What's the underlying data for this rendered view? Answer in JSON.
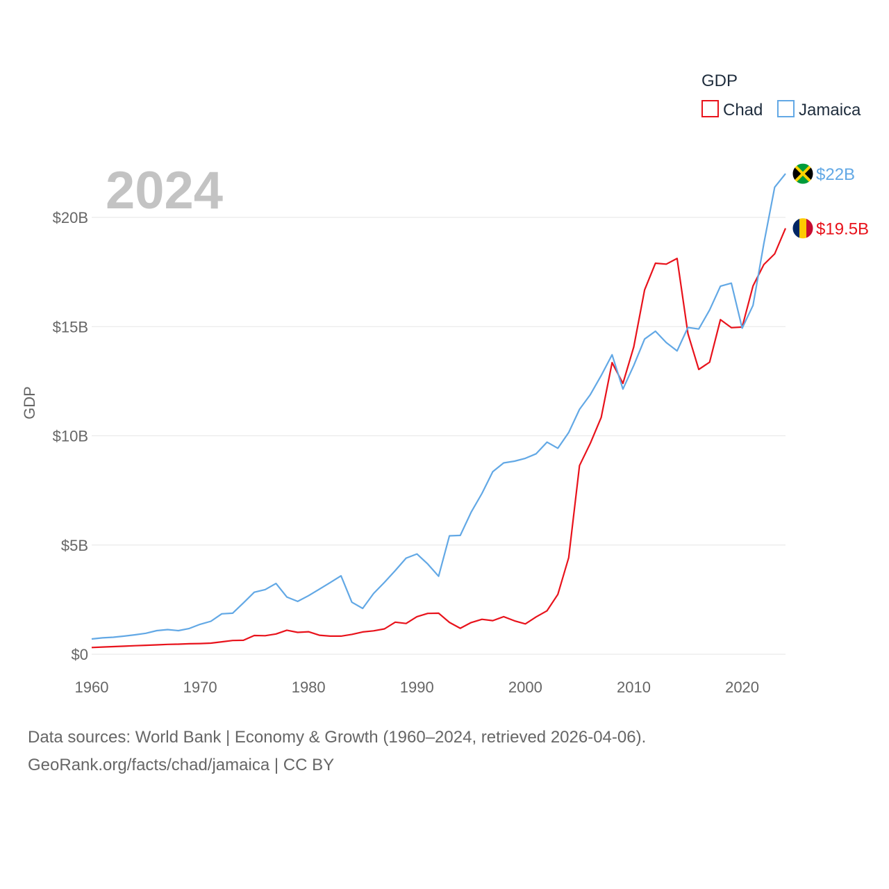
{
  "chart_data": {
    "type": "line",
    "title": "",
    "year_label": "2024",
    "ylabel": "GDP",
    "xlabel": "",
    "legend_title": "GDP",
    "xlim": [
      1960,
      2024
    ],
    "ylim": [
      0,
      20000000000
    ],
    "y_ticks": [
      {
        "value": 0,
        "label": "$0"
      },
      {
        "value": 5000000000,
        "label": "$5B"
      },
      {
        "value": 10000000000,
        "label": "$10B"
      },
      {
        "value": 15000000000,
        "label": "$15B"
      },
      {
        "value": 20000000000,
        "label": "$20B"
      }
    ],
    "x_ticks": [
      {
        "value": 1960,
        "label": "1960"
      },
      {
        "value": 1970,
        "label": "1970"
      },
      {
        "value": 1980,
        "label": "1980"
      },
      {
        "value": 1990,
        "label": "1990"
      },
      {
        "value": 2000,
        "label": "2000"
      },
      {
        "value": 2010,
        "label": "2010"
      },
      {
        "value": 2020,
        "label": "2020"
      }
    ],
    "x_start": 1960,
    "series": [
      {
        "name": "Chad",
        "color": "#e8121b",
        "end_label": "$19.5B",
        "flag": "chad-flag-icon",
        "values": [
          0.31,
          0.33,
          0.35,
          0.37,
          0.39,
          0.41,
          0.43,
          0.45,
          0.46,
          0.48,
          0.49,
          0.51,
          0.57,
          0.63,
          0.64,
          0.86,
          0.85,
          0.93,
          1.1,
          1.0,
          1.03,
          0.87,
          0.83,
          0.83,
          0.91,
          1.02,
          1.07,
          1.16,
          1.47,
          1.41,
          1.72,
          1.87,
          1.88,
          1.46,
          1.19,
          1.45,
          1.6,
          1.54,
          1.72,
          1.53,
          1.39,
          1.71,
          1.99,
          2.74,
          4.42,
          8.64,
          9.66,
          10.84,
          13.35,
          12.4,
          14.07,
          16.68,
          17.9,
          17.86,
          18.12,
          14.68,
          13.04,
          13.37,
          15.32,
          14.95,
          14.98,
          16.86,
          17.84,
          18.33,
          19.5
        ]
      },
      {
        "name": "Jamaica",
        "color": "#62a8e5",
        "end_label": "$22B",
        "flag": "jamaica-flag-icon",
        "values": [
          0.7,
          0.75,
          0.78,
          0.83,
          0.89,
          0.96,
          1.08,
          1.13,
          1.08,
          1.18,
          1.37,
          1.51,
          1.85,
          1.88,
          2.35,
          2.84,
          2.96,
          3.24,
          2.62,
          2.42,
          2.68,
          2.98,
          3.28,
          3.59,
          2.38,
          2.1,
          2.78,
          3.29,
          3.83,
          4.4,
          4.59,
          4.13,
          3.57,
          5.42,
          5.44,
          6.5,
          7.36,
          8.36,
          8.76,
          8.84,
          8.97,
          9.18,
          9.71,
          9.43,
          10.15,
          11.21,
          11.89,
          12.76,
          13.71,
          12.14,
          13.22,
          14.43,
          14.79,
          14.27,
          13.89,
          14.96,
          14.89,
          15.76,
          16.85,
          16.99,
          14.93,
          15.97,
          18.8,
          21.38,
          22.0
        ]
      }
    ]
  },
  "footer": {
    "line1": "Data sources: World Bank | Economy & Growth (1960–2024, retrieved 2026-04-06).",
    "line2": "GeoRank.org/facts/chad/jamaica | CC BY"
  }
}
